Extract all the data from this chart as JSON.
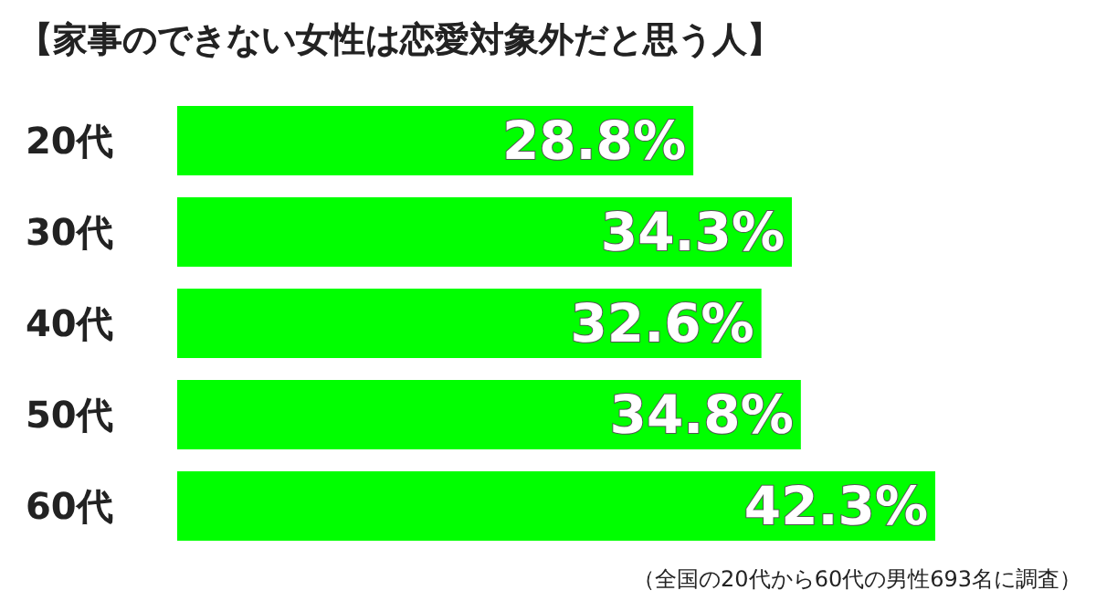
{
  "chart_data": {
    "type": "bar",
    "orientation": "horizontal",
    "title": "【家事のできない女性は恋愛対象外だと思う人】",
    "categories": [
      "20代",
      "30代",
      "40代",
      "50代",
      "60代"
    ],
    "values": [
      28.8,
      34.3,
      32.6,
      34.8,
      42.3
    ],
    "value_labels": [
      "28.8%",
      "34.3%",
      "32.6%",
      "34.8%",
      "42.3%"
    ],
    "color": "#00ff00",
    "annotations": [
      "（全国の20代から60代の男性693名に調査）"
    ]
  }
}
